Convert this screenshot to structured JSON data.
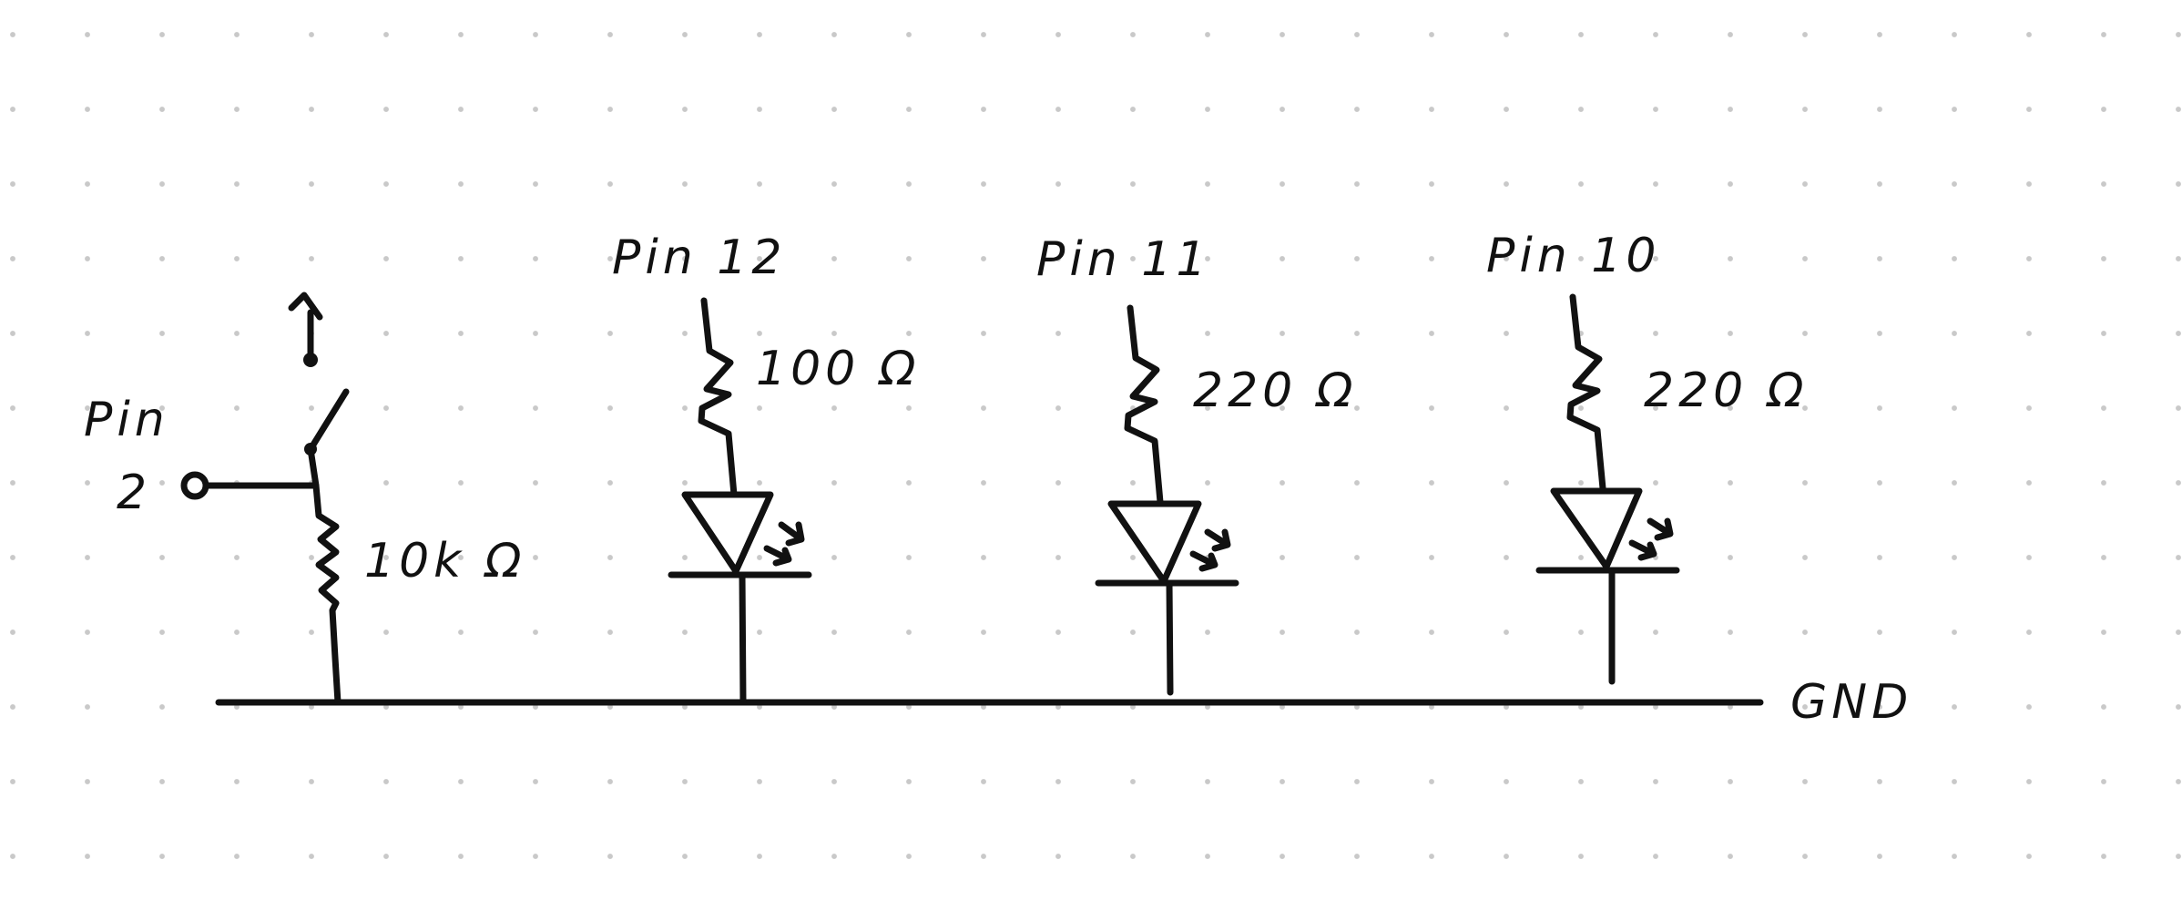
{
  "labels": {
    "pin2_top": "Pin",
    "pin2_bottom": "2",
    "r_pullup": "10k Ω",
    "pin12": "Pin 12",
    "r12": "100 Ω",
    "pin11": "Pin 11",
    "r11": "220 Ω",
    "pin10": "Pin 10",
    "r10": "220 Ω",
    "gnd": "GND"
  },
  "colors": {
    "ink": "#111111",
    "grid_dot": "#c9c9c9",
    "background": "#ffffff"
  }
}
